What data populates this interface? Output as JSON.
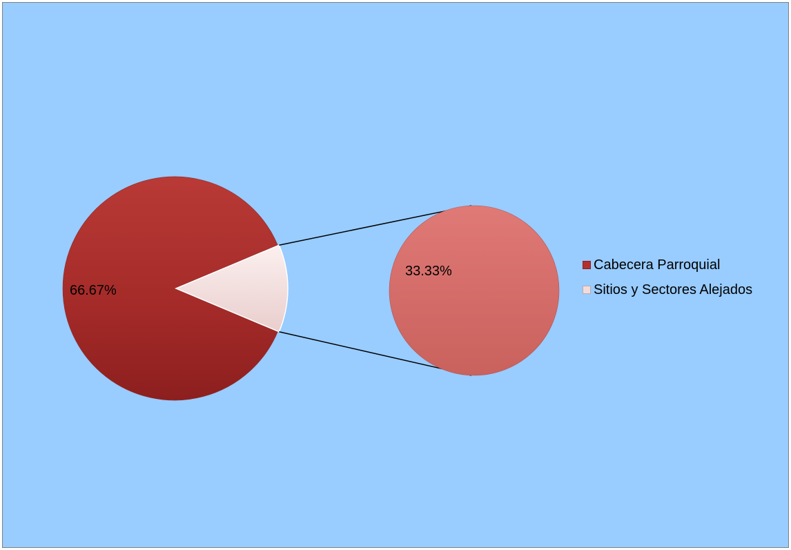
{
  "colors": {
    "background": "#99ccff",
    "cabecera": "#b3302e",
    "sitios": "#f2dcdb",
    "secondary": "#d9706c",
    "connector": "#000000"
  },
  "chart_data": {
    "type": "pie",
    "subtype": "pie-of-pie",
    "title": "",
    "legend_position": "right",
    "primary": {
      "categories": [
        "Cabecera Parroquial",
        "Sitios y Sectores Alejados"
      ],
      "values": [
        66.67,
        33.33
      ],
      "labels": [
        "66.67%",
        ""
      ]
    },
    "secondary": {
      "categories": [
        "Sitios y Sectores Alejados"
      ],
      "values": [
        33.33
      ],
      "labels": [
        "33.33%"
      ]
    },
    "legend": [
      "Cabecera Parroquial",
      "Sitios y Sectores Alejados"
    ]
  }
}
